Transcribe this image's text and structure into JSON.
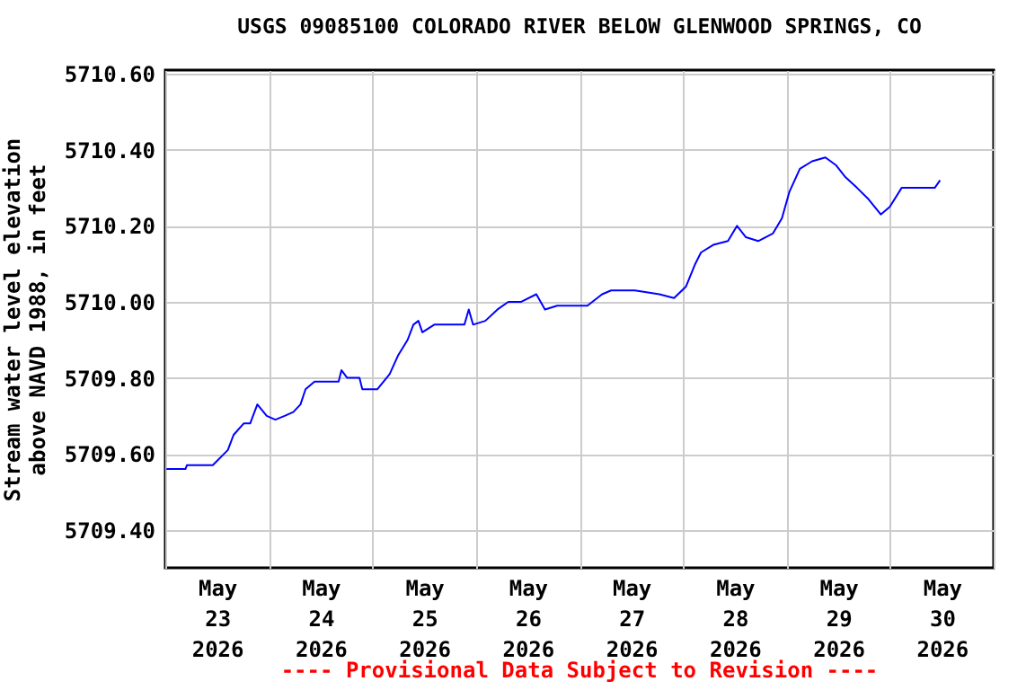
{
  "chart_data": {
    "type": "line",
    "title": "USGS 09085100 COLORADO RIVER BELOW GLENWOOD SPRINGS, CO",
    "ylabel": "Stream water level elevation above NAVD 1988, in feet",
    "annotations": [
      "---- Provisional Data Subject to Revision ----"
    ],
    "xlim": [
      "2026-05-23T00:00",
      "2026-05-31T00:00"
    ],
    "xticks": [
      {
        "value": "2026-05-23T00:00",
        "label": null
      },
      {
        "value": "2026-05-24T00:00",
        "label": null
      },
      {
        "value": "2026-05-25T00:00",
        "label": null
      },
      {
        "value": "2026-05-26T00:00",
        "label": null
      },
      {
        "value": "2026-05-27T00:00",
        "label": null
      },
      {
        "value": "2026-05-28T00:00",
        "label": null
      },
      {
        "value": "2026-05-29T00:00",
        "label": null
      },
      {
        "value": "2026-05-30T00:00",
        "label": null
      },
      {
        "value": "2026-05-31T00:00",
        "label": null
      },
      {
        "value": "2026-05-23T12:00",
        "label": "May 23 2026"
      },
      {
        "value": "2026-05-24T12:00",
        "label": "May 24 2026"
      },
      {
        "value": "2026-05-25T12:00",
        "label": "May 25 2026"
      },
      {
        "value": "2026-05-26T12:00",
        "label": "May 26 2026"
      },
      {
        "value": "2026-05-27T12:00",
        "label": "May 27 2026"
      },
      {
        "value": "2026-05-28T12:00",
        "label": "May 28 2026"
      },
      {
        "value": "2026-05-29T12:00",
        "label": "May 29 2026"
      },
      {
        "value": "2026-05-30T12:00",
        "label": "May 30 2026"
      }
    ],
    "ylim": [
      5709.3,
      5710.61
    ],
    "yticks": [
      {
        "value": 5709.4,
        "label": "5709.40"
      },
      {
        "value": 5709.6,
        "label": "5709.60"
      },
      {
        "value": 5709.8,
        "label": "5709.80"
      },
      {
        "value": 5710.0,
        "label": "5710.00"
      },
      {
        "value": 5710.2,
        "label": "5710.20"
      },
      {
        "value": 5710.4,
        "label": "5710.40"
      },
      {
        "value": 5710.6,
        "label": "5710.60"
      }
    ],
    "grid": true,
    "legend": false,
    "marker": "none",
    "line_style": "solid",
    "series": [
      {
        "color": "#0000ff",
        "x": [
          "2026-05-23T00:15",
          "2026-05-23T04:40",
          "2026-05-23T05:00",
          "2026-05-23T11:00",
          "2026-05-23T14:30",
          "2026-05-23T15:50",
          "2026-05-23T18:10",
          "2026-05-23T19:40",
          "2026-05-23T21:20",
          "2026-05-23T23:30",
          "2026-05-24T01:30",
          "2026-05-24T03:40",
          "2026-05-24T05:40",
          "2026-05-24T07:20",
          "2026-05-24T08:30",
          "2026-05-24T10:35",
          "2026-05-24T12:40",
          "2026-05-24T16:10",
          "2026-05-24T16:50",
          "2026-05-24T18:10",
          "2026-05-24T21:00",
          "2026-05-24T21:40",
          "2026-05-25T01:10",
          "2026-05-25T04:00",
          "2026-05-25T06:00",
          "2026-05-25T08:10",
          "2026-05-25T09:30",
          "2026-05-25T10:40",
          "2026-05-25T11:35",
          "2026-05-25T14:20",
          "2026-05-25T17:50",
          "2026-05-25T21:20",
          "2026-05-25T22:20",
          "2026-05-25T23:20",
          "2026-05-26T02:10",
          "2026-05-26T05:00",
          "2026-05-26T07:30",
          "2026-05-26T10:30",
          "2026-05-26T14:00",
          "2026-05-26T16:00",
          "2026-05-26T18:50",
          "2026-05-27T00:20",
          "2026-05-27T01:50",
          "2026-05-27T05:15",
          "2026-05-27T07:20",
          "2026-05-27T12:50",
          "2026-05-27T18:30",
          "2026-05-27T21:55",
          "2026-05-28T00:40",
          "2026-05-28T02:50",
          "2026-05-28T04:10",
          "2026-05-28T07:00",
          "2026-05-28T10:25",
          "2026-05-28T12:30",
          "2026-05-28T14:35",
          "2026-05-28T17:25",
          "2026-05-28T20:50",
          "2026-05-28T22:55",
          "2026-05-29T00:40",
          "2026-05-29T03:05",
          "2026-05-29T05:55",
          "2026-05-29T09:00",
          "2026-05-29T11:25",
          "2026-05-29T13:30",
          "2026-05-29T16:20",
          "2026-05-29T19:00",
          "2026-05-29T21:50",
          "2026-05-29T23:55",
          "2026-05-30T02:40",
          "2026-05-30T06:55",
          "2026-05-30T10:20",
          "2026-05-30T11:35"
        ],
        "values": [
          5709.56,
          5709.56,
          5709.57,
          5709.57,
          5709.61,
          5709.65,
          5709.68,
          5709.68,
          5709.73,
          5709.7,
          5709.69,
          5709.7,
          5709.71,
          5709.73,
          5709.77,
          5709.79,
          5709.79,
          5709.79,
          5709.82,
          5709.8,
          5709.8,
          5709.77,
          5709.77,
          5709.81,
          5709.86,
          5709.9,
          5709.94,
          5709.95,
          5709.92,
          5709.94,
          5709.94,
          5709.94,
          5709.98,
          5709.94,
          5709.95,
          5709.98,
          5710.0,
          5710.0,
          5710.02,
          5709.98,
          5709.99,
          5709.99,
          5709.99,
          5710.02,
          5710.03,
          5710.03,
          5710.02,
          5710.01,
          5710.04,
          5710.1,
          5710.13,
          5710.15,
          5710.16,
          5710.2,
          5710.17,
          5710.16,
          5710.18,
          5710.22,
          5710.29,
          5710.35,
          5710.37,
          5710.38,
          5710.36,
          5710.33,
          5710.3,
          5710.27,
          5710.23,
          5710.25,
          5710.3,
          5710.3,
          5710.3,
          5710.32
        ]
      }
    ]
  }
}
